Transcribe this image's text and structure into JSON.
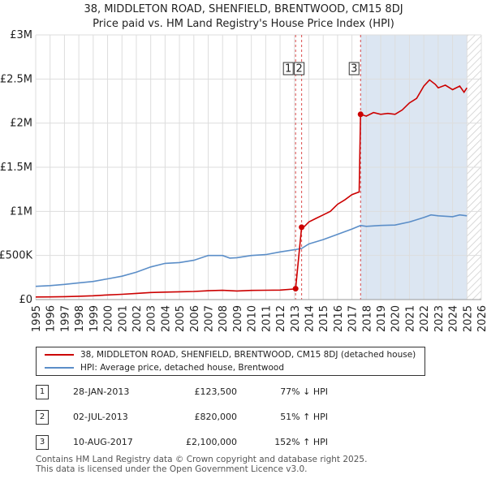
{
  "title_line1": "38, MIDDLETON ROAD, SHENFIELD, BRENTWOOD, CM15 8DJ",
  "title_line2": "Price paid vs. HM Land Registry's House Price Index (HPI)",
  "colors": {
    "property": "#cc0000",
    "hpi": "#5b8ec8",
    "shade": "#dce6f2",
    "grid": "#dddddd"
  },
  "legend": {
    "property_label": "38, MIDDLETON ROAD, SHENFIELD, BRENTWOOD, CM15 8DJ (detached house)",
    "hpi_label": "HPI: Average price, detached house, Brentwood"
  },
  "transactions": [
    {
      "num": "1",
      "date": "28-JAN-2013",
      "price": "£123,500",
      "hpi": "77% ↓ HPI"
    },
    {
      "num": "2",
      "date": "02-JUL-2013",
      "price": "£820,000",
      "hpi": "51% ↑ HPI"
    },
    {
      "num": "3",
      "date": "10-AUG-2017",
      "price": "£2,100,000",
      "hpi": "152% ↑ HPI"
    }
  ],
  "footer_line1": "Contains HM Land Registry data © Crown copyright and database right 2025.",
  "footer_line2": "This data is licensed under the Open Government Licence v3.0.",
  "chart_data": {
    "type": "line",
    "title": "Price paid vs. HM Land Registry's House Price Index (HPI)",
    "xlim": [
      1995,
      2026
    ],
    "ylim": [
      0,
      3000000
    ],
    "x_ticks": [
      "1995",
      "1996",
      "1997",
      "1998",
      "1999",
      "2000",
      "2001",
      "2002",
      "2003",
      "2004",
      "2005",
      "2006",
      "2007",
      "2008",
      "2009",
      "2010",
      "2011",
      "2012",
      "2013",
      "2014",
      "2015",
      "2016",
      "2017",
      "2018",
      "2019",
      "2020",
      "2021",
      "2022",
      "2023",
      "2024",
      "2025",
      "2026"
    ],
    "y_ticks": [
      {
        "value": 0,
        "label": "£0"
      },
      {
        "value": 500000,
        "label": "£500K"
      },
      {
        "value": 1000000,
        "label": "£1M"
      },
      {
        "value": 1500000,
        "label": "£1.5M"
      },
      {
        "value": 2000000,
        "label": "£2M"
      },
      {
        "value": 2500000,
        "label": "£2.5M"
      },
      {
        "value": 3000000,
        "label": "£3M"
      }
    ],
    "shaded_region": [
      2017.6,
      2025.0
    ],
    "forecast_region": [
      2025.0,
      2026
    ],
    "sale_markers": [
      {
        "label": "1",
        "x": 2013.08,
        "y": 123500
      },
      {
        "label": "2",
        "x": 2013.5,
        "y": 820000
      },
      {
        "label": "3",
        "x": 2017.6,
        "y": 2100000
      }
    ],
    "series": [
      {
        "name": "38, MIDDLETON ROAD, SHENFIELD, BRENTWOOD, CM15 8DJ (detached house)",
        "x": [
          1995,
          1996,
          1997,
          1998,
          1999,
          2000,
          2001,
          2002,
          2003,
          2004,
          2005,
          2006,
          2007,
          2008,
          2009,
          2010,
          2011,
          2012,
          2013.05,
          2013.08,
          2013.5,
          2013.7,
          2014,
          2014.5,
          2015,
          2015.5,
          2016,
          2016.5,
          2017,
          2017.5,
          2017.6,
          2018,
          2018.5,
          2019,
          2019.5,
          2020,
          2020.5,
          2021,
          2021.5,
          2022,
          2022.4,
          2022.8,
          2023,
          2023.5,
          2024,
          2024.5,
          2024.8,
          2025
        ],
        "values": [
          29000,
          30000,
          33000,
          38000,
          43000,
          52000,
          60000,
          70000,
          80000,
          85000,
          88000,
          92000,
          100000,
          105000,
          98000,
          104000,
          106000,
          108000,
          121000,
          123500,
          820000,
          830000,
          880000,
          920000,
          960000,
          1000000,
          1080000,
          1130000,
          1190000,
          1220000,
          2100000,
          2080000,
          2120000,
          2100000,
          2110000,
          2100000,
          2150000,
          2230000,
          2280000,
          2420000,
          2490000,
          2440000,
          2400000,
          2430000,
          2380000,
          2420000,
          2350000,
          2400000
        ]
      },
      {
        "name": "HPI: Average price, detached house, Brentwood",
        "x": [
          1995,
          1996,
          1997,
          1998,
          1999,
          2000,
          2001,
          2002,
          2003,
          2004,
          2005,
          2006,
          2007,
          2008,
          2008.5,
          2009,
          2010,
          2011,
          2012,
          2013,
          2013.5,
          2014,
          2015,
          2016,
          2017,
          2017.6,
          2018,
          2019,
          2020,
          2021,
          2022,
          2022.5,
          2023,
          2024,
          2024.5,
          2025
        ],
        "values": [
          150000,
          158000,
          172000,
          190000,
          205000,
          235000,
          265000,
          310000,
          370000,
          410000,
          420000,
          445000,
          500000,
          500000,
          470000,
          475000,
          500000,
          510000,
          540000,
          565000,
          580000,
          630000,
          680000,
          740000,
          800000,
          840000,
          830000,
          840000,
          845000,
          880000,
          930000,
          960000,
          950000,
          940000,
          960000,
          950000
        ]
      }
    ]
  }
}
